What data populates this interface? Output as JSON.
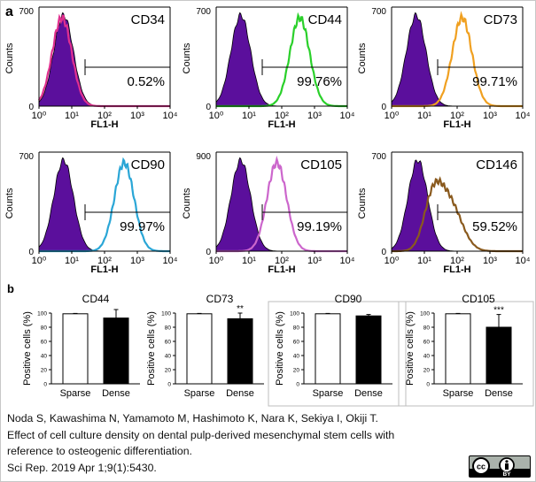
{
  "panel_a_label": "a",
  "panel_b_label": "b",
  "chart_data": [
    {
      "type": "histogram",
      "title": "CD34",
      "xlabel": "FL1-H",
      "ylabel": "Counts",
      "ymax_label": "700",
      "percent_label": "0.52%",
      "xlim": [
        1,
        10000
      ],
      "x_ticks": [
        "10⁰",
        "10¹",
        "10²",
        "10³",
        "10⁴"
      ],
      "control_color": "#5b0f9c",
      "overlay_color": "#e0308f",
      "control_peak_log": 0.75,
      "overlay_peak_log": 0.7,
      "overlay_positive_fraction": 0.0052
    },
    {
      "type": "histogram",
      "title": "CD44",
      "xlabel": "FL1-H",
      "ylabel": "Counts",
      "ymax_label": "700",
      "percent_label": "99.76%",
      "xlim": [
        1,
        10000
      ],
      "x_ticks": [
        "10⁰",
        "10¹",
        "10²",
        "10³",
        "10⁴"
      ],
      "control_color": "#5b0f9c",
      "overlay_color": "#2ad02a",
      "control_peak_log": 0.75,
      "overlay_peak_log": 2.55,
      "overlay_positive_fraction": 0.9976
    },
    {
      "type": "histogram",
      "title": "CD73",
      "xlabel": "FL1-H",
      "ylabel": "Counts",
      "ymax_label": "700",
      "percent_label": "99.71%",
      "xlim": [
        1,
        10000
      ],
      "x_ticks": [
        "10⁰",
        "10¹",
        "10²",
        "10³",
        "10⁴"
      ],
      "control_color": "#5b0f9c",
      "overlay_color": "#f0a020",
      "control_peak_log": 0.75,
      "overlay_peak_log": 2.15,
      "overlay_positive_fraction": 0.9971
    },
    {
      "type": "histogram",
      "title": "CD90",
      "xlabel": "FL1-H",
      "ylabel": "Counts",
      "ymax_label": "700",
      "percent_label": "99.97%",
      "xlim": [
        1,
        10000
      ],
      "x_ticks": [
        "10⁰",
        "10¹",
        "10²",
        "10³",
        "10⁴"
      ],
      "control_color": "#5b0f9c",
      "overlay_color": "#2aa6d6",
      "control_peak_log": 0.75,
      "overlay_peak_log": 2.6,
      "overlay_positive_fraction": 0.9997
    },
    {
      "type": "histogram",
      "title": "CD105",
      "xlabel": "FL1-H",
      "ylabel": "Counts",
      "ymax_label": "900",
      "percent_label": "99.19%",
      "xlim": [
        1,
        10000
      ],
      "x_ticks": [
        "10⁰",
        "10¹",
        "10²",
        "10³",
        "10⁴"
      ],
      "control_color": "#5b0f9c",
      "overlay_color": "#cc66cc",
      "control_peak_log": 0.75,
      "overlay_peak_log": 1.85,
      "overlay_positive_fraction": 0.9919
    },
    {
      "type": "histogram",
      "title": "CD146",
      "xlabel": "FL1-H",
      "ylabel": "Counts",
      "ymax_label": "700",
      "percent_label": "59.52%",
      "xlim": [
        1,
        10000
      ],
      "x_ticks": [
        "10⁰",
        "10¹",
        "10²",
        "10³",
        "10⁴"
      ],
      "control_color": "#5b0f9c",
      "overlay_color": "#8a5a1e",
      "control_peak_log": 0.8,
      "overlay_peak_log": 1.7,
      "overlay_positive_fraction": 0.5952
    },
    {
      "type": "bar",
      "title": "CD44",
      "ylabel": "Positive cells (%)",
      "ylim": [
        0,
        100
      ],
      "y_ticks": [
        0,
        20,
        40,
        60,
        80,
        100
      ],
      "categories": [
        "Sparse",
        "Dense"
      ],
      "values": [
        99,
        93
      ],
      "errors": [
        0.5,
        12
      ],
      "fill_colors": [
        "#ffffff",
        "#000000"
      ],
      "significance": [
        "",
        ""
      ]
    },
    {
      "type": "bar",
      "title": "CD73",
      "ylabel": "Positive cells (%)",
      "ylim": [
        0,
        100
      ],
      "y_ticks": [
        0,
        20,
        40,
        60,
        80,
        100
      ],
      "categories": [
        "Sparse",
        "Dense"
      ],
      "values": [
        99,
        92
      ],
      "errors": [
        0.5,
        8
      ],
      "fill_colors": [
        "#ffffff",
        "#000000"
      ],
      "significance": [
        "",
        "**"
      ]
    },
    {
      "type": "bar",
      "title": "CD90",
      "ylabel": "Positive cells (%)",
      "ylim": [
        0,
        100
      ],
      "y_ticks": [
        0,
        20,
        40,
        60,
        80,
        100
      ],
      "categories": [
        "Sparse",
        "Dense"
      ],
      "values": [
        99,
        96
      ],
      "errors": [
        0.5,
        2
      ],
      "fill_colors": [
        "#ffffff",
        "#000000"
      ],
      "significance": [
        "",
        ""
      ]
    },
    {
      "type": "bar",
      "title": "CD105",
      "ylabel": "Positive cells (%)",
      "ylim": [
        0,
        100
      ],
      "y_ticks": [
        0,
        20,
        40,
        60,
        80,
        100
      ],
      "categories": [
        "Sparse",
        "Dense"
      ],
      "values": [
        99,
        80
      ],
      "errors": [
        0.5,
        18
      ],
      "fill_colors": [
        "#ffffff",
        "#000000"
      ],
      "significance": [
        "",
        "***"
      ]
    }
  ],
  "citation": {
    "authors": "Noda S, Kawashima N, Yamamoto M, Hashimoto K, Nara K, Sekiya I, Okiji T.",
    "title_line1": "Effect of cell culture density on dental pulp-derived mesenchymal stem cells with",
    "title_line2": "reference to osteogenic differentiation.",
    "journal": "Sci Rep. 2019 Apr 1;9(1):5430."
  },
  "license": {
    "cc_text": "cc",
    "by_text": "BY"
  }
}
